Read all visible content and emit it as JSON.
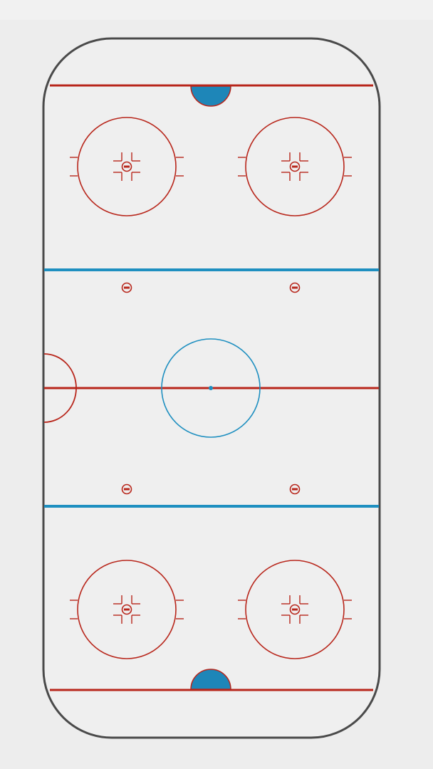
{
  "diagram": {
    "type": "hockey-rink",
    "orientation": "vertical",
    "face_off_circles": 5,
    "face_off_dots": 4,
    "goal_creases": 2
  },
  "colors": {
    "background": "#f1f1f1",
    "ice": "#efefef",
    "boards": "#4a4a4a",
    "red_line": "#b8261b",
    "blue_line": "#1e8fc0",
    "crease_fill": "#1e86b8"
  }
}
